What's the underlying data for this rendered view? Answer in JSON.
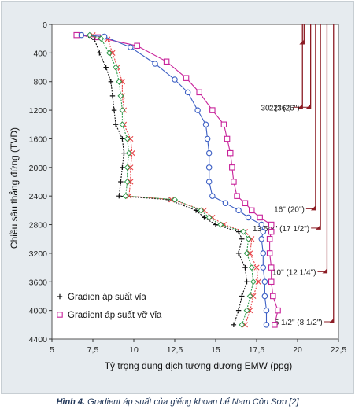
{
  "chart_data": {
    "type": "line",
    "xlabel": "Tỷ trọng dung dịch tương đương EMW (ppg)",
    "ylabel": "Chiều sâu thẳng đứng (TVD)",
    "xlim": [
      5,
      22.5
    ],
    "ylim": [
      4400,
      0
    ],
    "y_inverted": true,
    "grid": false,
    "legend_position": "bottom-left",
    "x_ticks": [
      "5",
      "7,5",
      "10",
      "12,5",
      "15",
      "17,5",
      "20",
      "22,5"
    ],
    "y_ticks": [
      "0",
      "400",
      "800",
      "1200",
      "1600",
      "2000",
      "2400",
      "2800",
      "3200",
      "3600",
      "4000",
      "4400"
    ],
    "series": [
      {
        "name": "Gradien áp suất vỉa",
        "color": "#111111",
        "marker": "plus",
        "points": [
          [
            6.9,
            150
          ],
          [
            7.6,
            210
          ],
          [
            7.9,
            400
          ],
          [
            8.3,
            600
          ],
          [
            8.6,
            800
          ],
          [
            8.7,
            1000
          ],
          [
            8.8,
            1200
          ],
          [
            8.9,
            1400
          ],
          [
            9.3,
            1600
          ],
          [
            9.4,
            1800
          ],
          [
            9.3,
            2000
          ],
          [
            9.2,
            2200
          ],
          [
            9.1,
            2400
          ],
          [
            12.1,
            2450
          ],
          [
            13.8,
            2600
          ],
          [
            14.3,
            2700
          ],
          [
            15.0,
            2800
          ],
          [
            16.4,
            2900
          ],
          [
            16.6,
            3000
          ],
          [
            16.4,
            3200
          ],
          [
            16.8,
            3400
          ],
          [
            16.9,
            3600
          ],
          [
            16.6,
            3800
          ],
          [
            16.4,
            4000
          ],
          [
            16.1,
            4200
          ]
        ]
      },
      {
        "name": "Gradient áp suất vỡ vỉa",
        "color": "#c8229a",
        "marker": "square",
        "points": [
          [
            6.5,
            150
          ],
          [
            7.8,
            180
          ],
          [
            10.2,
            300
          ],
          [
            12.0,
            520
          ],
          [
            13.2,
            750
          ],
          [
            14.0,
            950
          ],
          [
            14.8,
            1200
          ],
          [
            15.5,
            1400
          ],
          [
            15.7,
            1600
          ],
          [
            15.9,
            1800
          ],
          [
            16.0,
            2000
          ],
          [
            16.1,
            2200
          ],
          [
            16.3,
            2400
          ],
          [
            16.8,
            2500
          ],
          [
            17.2,
            2600
          ],
          [
            17.7,
            2700
          ],
          [
            18.4,
            2800
          ],
          [
            18.4,
            2900
          ],
          [
            18.3,
            3000
          ],
          [
            18.3,
            3200
          ],
          [
            18.4,
            3400
          ],
          [
            18.4,
            3600
          ],
          [
            18.5,
            3800
          ],
          [
            18.8,
            4000
          ],
          [
            18.6,
            4200
          ]
        ]
      },
      {
        "name": "",
        "color": "#e8454a",
        "marker": "x",
        "points": [
          [
            7.5,
            150
          ],
          [
            8.4,
            210
          ],
          [
            8.7,
            400
          ],
          [
            9.0,
            600
          ],
          [
            9.3,
            800
          ],
          [
            9.3,
            1000
          ],
          [
            9.4,
            1200
          ],
          [
            9.4,
            1400
          ],
          [
            9.8,
            1600
          ],
          [
            9.9,
            1800
          ],
          [
            9.8,
            2000
          ],
          [
            9.8,
            2200
          ],
          [
            9.7,
            2400
          ],
          [
            12.3,
            2450
          ],
          [
            14.3,
            2600
          ],
          [
            14.8,
            2700
          ],
          [
            15.5,
            2800
          ],
          [
            16.8,
            2900
          ],
          [
            17.2,
            3000
          ],
          [
            17.1,
            3200
          ],
          [
            17.5,
            3400
          ],
          [
            17.6,
            3600
          ],
          [
            17.3,
            3800
          ],
          [
            17.1,
            4000
          ],
          [
            16.8,
            4200
          ]
        ]
      },
      {
        "name": "",
        "color": "#3c5fc4",
        "marker": "circle",
        "points": [
          [
            6.8,
            150
          ],
          [
            8.2,
            170
          ],
          [
            9.8,
            320
          ],
          [
            11.3,
            550
          ],
          [
            12.5,
            770
          ],
          [
            13.3,
            950
          ],
          [
            13.9,
            1200
          ],
          [
            14.4,
            1400
          ],
          [
            14.5,
            1600
          ],
          [
            14.6,
            1800
          ],
          [
            14.6,
            2000
          ],
          [
            14.6,
            2200
          ],
          [
            14.8,
            2400
          ],
          [
            15.6,
            2500
          ],
          [
            16.4,
            2600
          ],
          [
            17.0,
            2700
          ],
          [
            17.8,
            2800
          ],
          [
            17.9,
            2900
          ],
          [
            17.8,
            3000
          ],
          [
            17.9,
            3200
          ],
          [
            17.9,
            3400
          ],
          [
            18.0,
            3600
          ],
          [
            18.0,
            3800
          ],
          [
            18.1,
            4000
          ],
          [
            18.1,
            4200
          ]
        ]
      },
      {
        "name": "",
        "color": "#2e9b4b",
        "marker": "diamond",
        "points": [
          [
            7.3,
            150
          ],
          [
            8.0,
            200
          ],
          [
            8.5,
            400
          ],
          [
            8.9,
            600
          ],
          [
            9.1,
            800
          ],
          [
            9.2,
            1000
          ],
          [
            9.3,
            1200
          ],
          [
            9.3,
            1400
          ],
          [
            9.6,
            1600
          ],
          [
            9.7,
            1800
          ],
          [
            9.6,
            2000
          ],
          [
            9.6,
            2200
          ],
          [
            9.5,
            2400
          ],
          [
            12.5,
            2450
          ],
          [
            14.1,
            2600
          ],
          [
            14.6,
            2700
          ],
          [
            15.3,
            2800
          ],
          [
            16.7,
            2900
          ],
          [
            17.0,
            3000
          ],
          [
            16.9,
            3200
          ],
          [
            17.2,
            3400
          ],
          [
            17.3,
            3600
          ],
          [
            17.1,
            3800
          ],
          [
            16.9,
            4000
          ],
          [
            16.6,
            4200
          ]
        ]
      }
    ],
    "casings": [
      {
        "label": "30\" (36\")",
        "x": 20.3,
        "top": 0,
        "shoe": 1180,
        "show_label": true
      },
      {
        "label": "30\" (36\")",
        "x": 20.4,
        "top": 0,
        "shoe": 280,
        "show_label": false
      },
      {
        "label": "22\" (26\")",
        "x": 20.8,
        "top": 0,
        "shoe": 1180,
        "show_label": true
      },
      {
        "label": "16\" (20\")",
        "x": 21.1,
        "top": 0,
        "shoe": 2600,
        "show_label": true
      },
      {
        "label": "13 5/8\" (17 1/2\")",
        "x": 21.4,
        "top": 0,
        "shoe": 2870,
        "show_label": true
      },
      {
        "label": "10\" (12 1/4\")",
        "x": 21.8,
        "top": 0,
        "shoe": 3480,
        "show_label": true
      },
      {
        "label": "5 1/2\" (8 1/2\")",
        "x": 22.2,
        "top": 0,
        "shoe": 4180,
        "show_label": true
      }
    ],
    "casing_color": "#8c1c24"
  },
  "legend": [
    {
      "label": "Gradien áp suất vỉa",
      "color": "#111111",
      "marker": "plus"
    },
    {
      "label": "Gradient áp suất vỡ vỉa",
      "color": "#c8229a",
      "marker": "square"
    }
  ],
  "caption": {
    "bold": "Hình 4.",
    "text": " Gradient áp suất của giếng khoan bể Nam Côn Sơn [2]"
  }
}
